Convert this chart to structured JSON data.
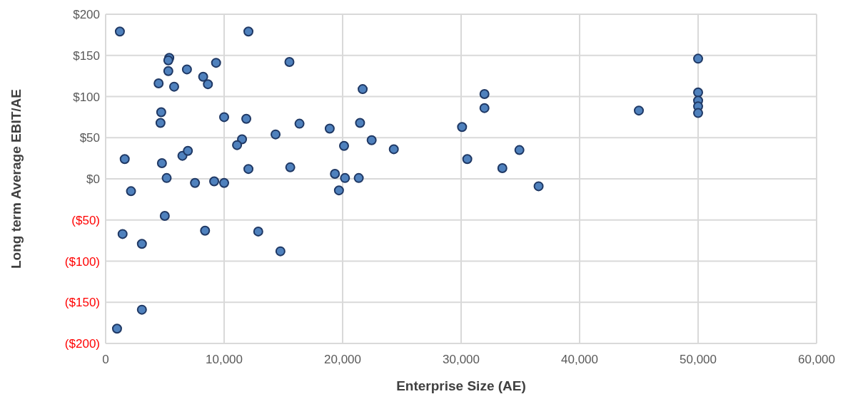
{
  "chart_data": {
    "type": "scatter",
    "xlabel": "Enterprise Size (AE)",
    "ylabel": "Long term Average EBIT/AE",
    "x": [
      1200,
      5370,
      5290,
      5290,
      6860,
      9320,
      8230,
      8630,
      4470,
      5780,
      4690,
      4630,
      10000,
      1610,
      4750,
      6480,
      6940,
      5150,
      7540,
      9160,
      10000,
      2140,
      4990,
      1430,
      8390,
      3060,
      3060,
      960,
      12050,
      15510,
      21690,
      11870,
      16360,
      18910,
      21470,
      14340,
      11510,
      11090,
      20120,
      22450,
      24320,
      12050,
      15580,
      19350,
      20200,
      21360,
      19690,
      12880,
      14750,
      50000,
      50000,
      50000,
      50000,
      50000,
      45000,
      31970,
      31970,
      30080,
      30520,
      34920,
      33480,
      36540
    ],
    "values": [
      179,
      147,
      144,
      131,
      133,
      141,
      124,
      115,
      116,
      112,
      81,
      68,
      75,
      24,
      19,
      28,
      34,
      1,
      -5,
      -3,
      -5,
      -15,
      -45,
      -67,
      -63,
      -79,
      -159,
      -182,
      179,
      142,
      109,
      73,
      67,
      61,
      68,
      54,
      48,
      41,
      40,
      47,
      36,
      12,
      14,
      6,
      1,
      1,
      -14,
      -64,
      -88,
      146,
      105,
      95,
      88,
      80,
      83,
      103,
      86,
      63,
      24,
      35,
      13,
      -9
    ],
    "color": "#4f81bd",
    "marker": "circle",
    "grid": true,
    "xlim": [
      0,
      60000
    ],
    "xticks": [
      {
        "value": 0,
        "label": "0"
      },
      {
        "value": 10000,
        "label": "10,000"
      },
      {
        "value": 20000,
        "label": "20,000"
      },
      {
        "value": 30000,
        "label": "30,000"
      },
      {
        "value": 40000,
        "label": "40,000"
      },
      {
        "value": 50000,
        "label": "50,000"
      },
      {
        "value": 60000,
        "label": "60,000"
      }
    ],
    "ylim": [
      -200,
      200
    ],
    "yticks": [
      {
        "value": -200,
        "label": "($200)"
      },
      {
        "value": -150,
        "label": "($150)"
      },
      {
        "value": -100,
        "label": "($100)"
      },
      {
        "value": -50,
        "label": "($50)"
      },
      {
        "value": 0,
        "label": "$0"
      },
      {
        "value": 50,
        "label": "$50"
      },
      {
        "value": 100,
        "label": "$100"
      },
      {
        "value": 150,
        "label": "$150"
      },
      {
        "value": 200,
        "label": "$200"
      }
    ]
  }
}
